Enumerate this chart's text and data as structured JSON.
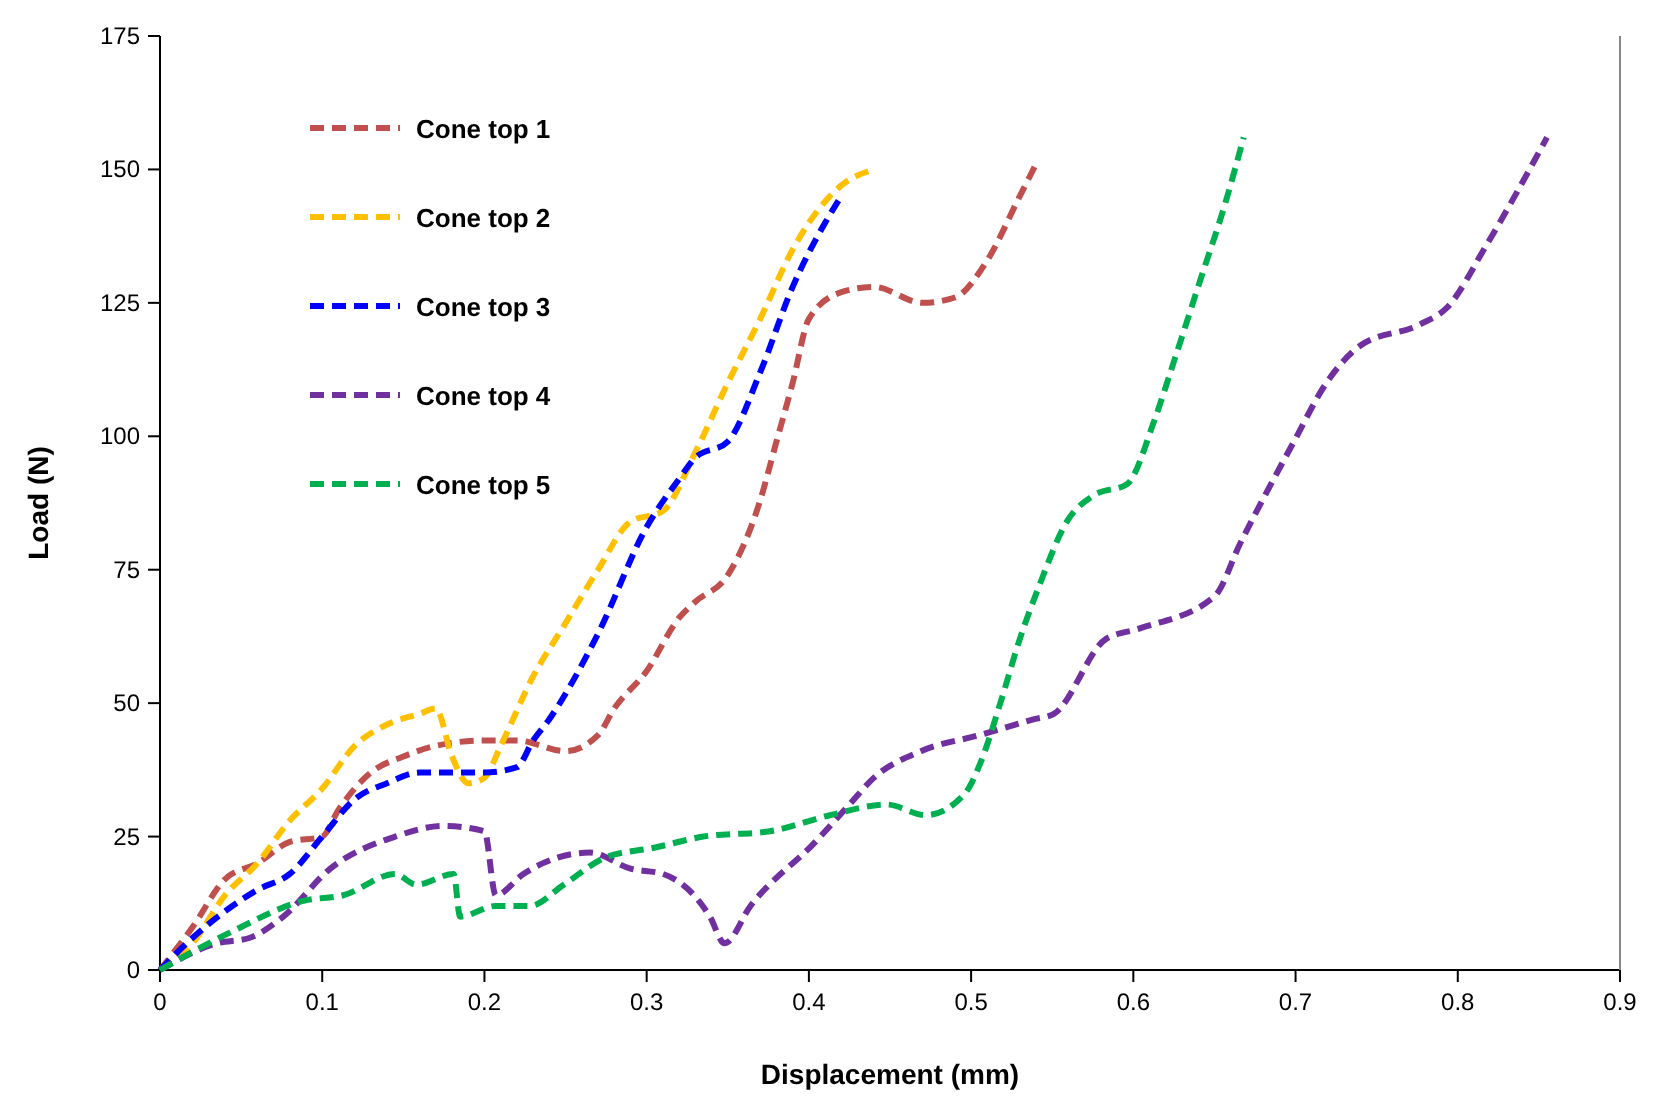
{
  "chart_data": {
    "type": "line",
    "xlabel": "Displacement (mm)",
    "ylabel": "Load (N)",
    "xlim": [
      0,
      0.9
    ],
    "ylim": [
      0,
      175
    ],
    "xticks": [
      0,
      0.1,
      0.2,
      0.3,
      0.4,
      0.5,
      0.6,
      0.7,
      0.8,
      0.9
    ],
    "yticks": [
      0,
      25,
      50,
      75,
      100,
      125,
      150,
      175
    ],
    "grid": false,
    "legend": "top left",
    "line_style": "dashed",
    "marker": "none",
    "series": [
      {
        "name": "Cone top 1",
        "color": "#c0504d",
        "x": [
          0,
          0.02,
          0.04,
          0.06,
          0.08,
          0.1,
          0.11,
          0.13,
          0.15,
          0.17,
          0.2,
          0.22,
          0.25,
          0.27,
          0.28,
          0.3,
          0.32,
          0.33,
          0.35,
          0.37,
          0.38,
          0.39,
          0.4,
          0.42,
          0.44,
          0.47,
          0.49,
          0.51,
          0.53,
          0.54
        ],
        "values": [
          0,
          8,
          17,
          20,
          24,
          25,
          30,
          37,
          40,
          42,
          43,
          43,
          41,
          44,
          49,
          56,
          66,
          69,
          74,
          88,
          99,
          110,
          122,
          127,
          128,
          125,
          126,
          133,
          145,
          151
        ]
      },
      {
        "name": "Cone top 2",
        "color": "#ffc000",
        "x": [
          0,
          0.02,
          0.04,
          0.06,
          0.08,
          0.1,
          0.12,
          0.14,
          0.16,
          0.17,
          0.18,
          0.19,
          0.2,
          0.21,
          0.23,
          0.25,
          0.27,
          0.29,
          0.31,
          0.33,
          0.35,
          0.37,
          0.39,
          0.41,
          0.42,
          0.44
        ],
        "values": [
          0,
          5,
          14,
          20,
          28,
          34,
          42,
          46,
          48,
          49,
          40,
          35,
          36,
          42,
          55,
          65,
          75,
          84,
          86,
          97,
          110,
          122,
          135,
          144,
          147,
          150
        ]
      },
      {
        "name": "Cone top 3",
        "color": "#0000ff",
        "x": [
          0,
          0.02,
          0.04,
          0.06,
          0.08,
          0.1,
          0.12,
          0.14,
          0.16,
          0.18,
          0.2,
          0.22,
          0.23,
          0.24,
          0.27,
          0.3,
          0.32,
          0.33,
          0.35,
          0.37,
          0.39,
          0.41,
          0.42
        ],
        "values": [
          0,
          6,
          11,
          15,
          18,
          25,
          32,
          35,
          37,
          37,
          37,
          38,
          43,
          47,
          63,
          83,
          92,
          96,
          99,
          112,
          128,
          140,
          145
        ]
      },
      {
        "name": "Cone top 4",
        "color": "#7030a0",
        "x": [
          0,
          0.035,
          0.055,
          0.076,
          0.105,
          0.145,
          0.175,
          0.2,
          0.207,
          0.224,
          0.265,
          0.29,
          0.31,
          0.339,
          0.348,
          0.364,
          0.404,
          0.425,
          0.44,
          0.469,
          0.505,
          0.539,
          0.551,
          0.583,
          0.604,
          0.65,
          0.666,
          0.699,
          0.719,
          0.74,
          0.777,
          0.793,
          0.818,
          0.855
        ],
        "values": [
          0,
          5,
          6,
          10,
          19,
          25,
          27,
          26,
          14,
          18,
          22,
          19,
          18,
          10,
          5,
          12,
          24,
          31,
          36,
          41,
          44,
          47,
          48,
          62,
          64,
          70,
          80,
          99,
          110,
          117,
          121,
          124,
          136,
          156
        ]
      },
      {
        "name": "Cone top 5",
        "color": "#00b050",
        "x": [
          0,
          0.043,
          0.089,
          0.113,
          0.145,
          0.158,
          0.181,
          0.185,
          0.207,
          0.228,
          0.249,
          0.274,
          0.306,
          0.335,
          0.376,
          0.413,
          0.448,
          0.472,
          0.496,
          0.506,
          0.518,
          0.53,
          0.542,
          0.559,
          0.576,
          0.596,
          0.613,
          0.625,
          0.641,
          0.657,
          0.668
        ],
        "values": [
          0,
          7,
          13,
          14,
          18,
          16,
          18,
          10,
          12,
          12,
          16,
          21,
          23,
          25,
          26,
          29,
          31,
          29,
          33,
          39,
          50,
          62,
          72,
          84,
          89,
          91,
          103,
          114,
          129,
          144,
          156
        ]
      }
    ]
  }
}
